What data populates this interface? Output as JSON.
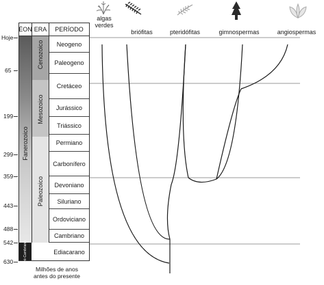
{
  "headers": {
    "eon": "ÉON",
    "era": "ERA",
    "period": "PERÍODO"
  },
  "y_axis": {
    "caption_line1": "Milhões de anos",
    "caption_line2": "antes do presente",
    "ticks": [
      "Hoje",
      "65",
      "199",
      "299",
      "359",
      "443",
      "488",
      "542",
      "630"
    ]
  },
  "periods": [
    "Neogeno",
    "Paleogeno",
    "Cretáceo",
    "Jurássico",
    "Triássico",
    "Permiano",
    "Carbonífero",
    "Devoniano",
    "Siluriano",
    "Ordoviciano",
    "Cambriano",
    "Ediacarano"
  ],
  "eras": [
    "Cenozoico",
    "Mesozoico",
    "Paleozoico"
  ],
  "eons": [
    "Fanerozoico",
    "Pré-Cambriano"
  ],
  "taxa": [
    "algas verdes",
    "briófitas",
    "pteridófitas",
    "gimnospermas",
    "angiospermas"
  ],
  "icons": [
    "algae-icon",
    "moss-icon",
    "fern-icon",
    "conifer-icon",
    "flower-leaf-icon"
  ]
}
